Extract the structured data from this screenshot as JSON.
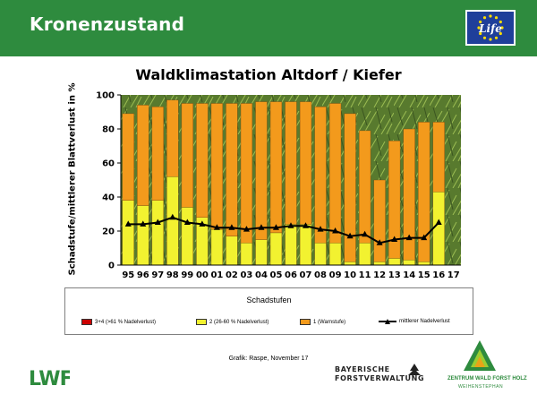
{
  "header": {
    "title": "Kronenzustand",
    "bg_color": "#2e8b3e",
    "eu_logo_text": "Life"
  },
  "chart_data": {
    "type": "bar",
    "stacked": true,
    "title": "Waldklimastation Altdorf / Kiefer",
    "ylabel": "Schadstufe/mittlerer Blattverlust in %",
    "xlabel": "",
    "ylim": [
      0,
      100
    ],
    "yticks": [
      0,
      20,
      40,
      60,
      80,
      100
    ],
    "grid": false,
    "background": "photo of pine needles",
    "categories": [
      "95",
      "96",
      "97",
      "98",
      "99",
      "00",
      "01",
      "02",
      "03",
      "04",
      "05",
      "06",
      "07",
      "08",
      "09",
      "10",
      "11",
      "12",
      "13",
      "14",
      "15",
      "16",
      "17"
    ],
    "series": [
      {
        "name": "3+4 (>61 % Nadelverlust)",
        "color": "#cc0000",
        "values": [
          0,
          0,
          0,
          0,
          0,
          0,
          0,
          0,
          0,
          0,
          0,
          0,
          0,
          0,
          0,
          0,
          0,
          0,
          0,
          0,
          0,
          0,
          null
        ]
      },
      {
        "name": "2 (26-60 % Nadelverlust)",
        "color": "#f2f230",
        "values": [
          38,
          35,
          38,
          52,
          34,
          28,
          21,
          17,
          13,
          15,
          19,
          24,
          24,
          13,
          13,
          2,
          13,
          2,
          4,
          3,
          2,
          43,
          null
        ]
      },
      {
        "name": "1 (Warnstufe)",
        "color": "#f39a1c",
        "values": [
          51,
          59,
          55,
          45,
          61,
          67,
          74,
          78,
          82,
          81,
          77,
          72,
          72,
          80,
          82,
          87,
          66,
          48,
          69,
          77,
          82,
          41,
          null
        ]
      },
      {
        "name": "mittlerer Nadelverlust",
        "type": "line",
        "color": "#000000",
        "marker": "triangle",
        "values": [
          24,
          24,
          25,
          28,
          25,
          24,
          22,
          22,
          21,
          22,
          22,
          23,
          23,
          21,
          20,
          17,
          18,
          13,
          15,
          16,
          16,
          25,
          null
        ]
      }
    ],
    "legend": {
      "title": "Schadstufen",
      "placement": "bottom"
    }
  },
  "legend": {
    "title": "Schadstufen",
    "items": [
      {
        "label": "3+4 (>61 % Nadelverlust)",
        "color": "#cc0000",
        "kind": "swatch"
      },
      {
        "label": "2 (26-60 % Nadelverlust)",
        "color": "#f2f230",
        "kind": "swatch"
      },
      {
        "label": "1 (Warnstufe)",
        "color": "#f39a1c",
        "kind": "swatch"
      },
      {
        "label": "mittlerer Nadelverlust",
        "color": "#000000",
        "kind": "line"
      }
    ]
  },
  "source": "Grafik: Raspe, November 17",
  "logos": {
    "lwf": "LWF",
    "bf_line1": "BAYERISCHE",
    "bf_line2": "FORSTVERWALTUNG",
    "zwfh_line1": "ZENTRUM WALD FORST HOLZ",
    "zwfh_line2": "WEIHENSTEPHAN"
  }
}
